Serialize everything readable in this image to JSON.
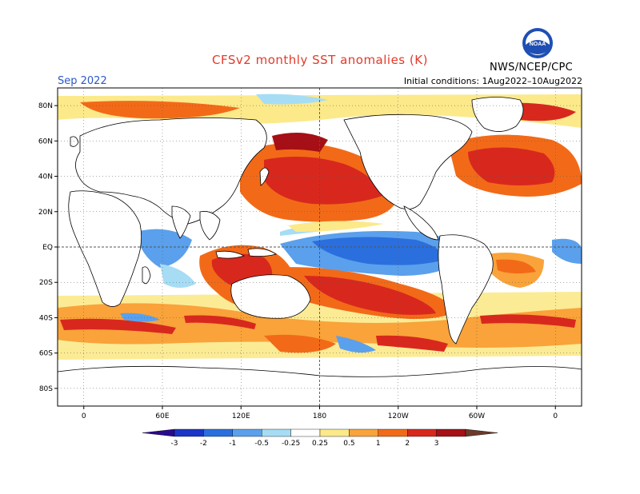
{
  "header": {
    "title": "CFSv2 monthly SST anomalies (K)",
    "month": "Sep 2022",
    "initial_conditions": "Initial conditions: 1Aug2022–10Aug2022",
    "agency": "NWS/NCEP/CPC",
    "logo_text": "NOAA"
  },
  "axes": {
    "lat_labels": [
      "80N",
      "60N",
      "40N",
      "20N",
      "EQ",
      "20S",
      "40S",
      "60S",
      "80S"
    ],
    "lat_values": [
      80,
      60,
      40,
      20,
      0,
      -20,
      -40,
      -60,
      -80
    ],
    "lon_labels": [
      "0",
      "60E",
      "120E",
      "180",
      "120W",
      "60W",
      "0"
    ],
    "lon_values": [
      0,
      60,
      120,
      180,
      240,
      300,
      360
    ]
  },
  "colorbar": {
    "labels": [
      "-3",
      "-2",
      "-1",
      "-0.5",
      "-0.25",
      "0.25",
      "0.5",
      "1",
      "2",
      "3"
    ],
    "colors": [
      "#2a0a8c",
      "#1a35c8",
      "#2b6fde",
      "#5aa0ec",
      "#a6ddf5",
      "#ffffff",
      "#fce98a",
      "#f9a33a",
      "#f26a18",
      "#d8281e",
      "#a50f15",
      "#6b3a2a"
    ]
  },
  "regions": [
    {
      "name": "eastern-pacific-cold-tongue",
      "anomaly": "-1"
    },
    {
      "name": "western-pacific-warm-pool",
      "anomaly": "1"
    },
    {
      "name": "north-pacific-warm",
      "anomaly": "2"
    },
    {
      "name": "north-atlantic-warm",
      "anomaly": "2"
    },
    {
      "name": "south-pacific-warm",
      "anomaly": "2"
    },
    {
      "name": "southern-ocean-warm-band",
      "anomaly": "2"
    },
    {
      "name": "arctic-warm",
      "anomaly": "2"
    }
  ]
}
